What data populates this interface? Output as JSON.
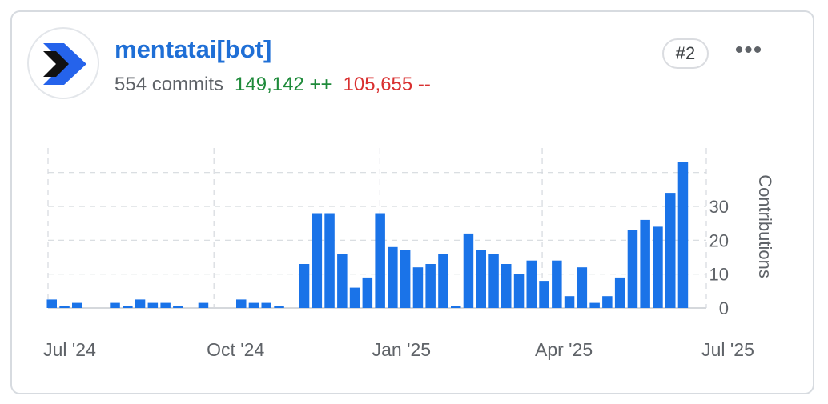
{
  "contributor": {
    "name": "mentatai[bot]",
    "commits": "554 commits",
    "additions": "149,142 ++",
    "deletions": "105,655 --",
    "rank": "#2",
    "more_label": "•••",
    "avatar_icon": "mentat-chevron-logo-icon"
  },
  "colors": {
    "accent": "#1f6fd6",
    "bar": "#1a73e8",
    "additions": "#1e8a3a",
    "deletions": "#d93030"
  },
  "chart_data": {
    "type": "bar",
    "ylabel": "Contributions",
    "xlabel": "",
    "y_ticks": [
      0,
      10,
      20,
      30
    ],
    "ylim": [
      0,
      43
    ],
    "x_tick_labels": [
      "Jul '24",
      "Oct '24",
      "Jan '25",
      "Apr '25",
      "Jul '25"
    ],
    "x_tick_dates": [
      "2024-07-01",
      "2024-10-01",
      "2025-01-01",
      "2025-04-01",
      "2025-07-01"
    ],
    "grid": true,
    "x": [
      "2024-06-30",
      "2024-07-07",
      "2024-07-14",
      "2024-07-21",
      "2024-07-28",
      "2024-08-04",
      "2024-08-11",
      "2024-08-18",
      "2024-08-25",
      "2024-09-01",
      "2024-09-08",
      "2024-09-15",
      "2024-09-22",
      "2024-09-29",
      "2024-10-06",
      "2024-10-13",
      "2024-10-20",
      "2024-10-27",
      "2024-11-03",
      "2024-11-10",
      "2024-11-17",
      "2024-11-24",
      "2024-12-01",
      "2024-12-08",
      "2024-12-15",
      "2024-12-22",
      "2024-12-29",
      "2025-01-05",
      "2025-01-12",
      "2025-01-19",
      "2025-01-26",
      "2025-02-02",
      "2025-02-09",
      "2025-02-16",
      "2025-02-23",
      "2025-03-02",
      "2025-03-09",
      "2025-03-16",
      "2025-03-23",
      "2025-03-30",
      "2025-04-06",
      "2025-04-13",
      "2025-04-20",
      "2025-04-27",
      "2025-05-04",
      "2025-05-11",
      "2025-05-18",
      "2025-05-25",
      "2025-06-01",
      "2025-06-08",
      "2025-06-15",
      "2025-06-22"
    ],
    "values": [
      2.5,
      0.5,
      1.5,
      0,
      0,
      1.5,
      0.5,
      2.5,
      1.5,
      1.5,
      0.5,
      0,
      1.5,
      0,
      0,
      2.5,
      1.5,
      1.5,
      0.5,
      0,
      13,
      28,
      28,
      16,
      6,
      9,
      28,
      18,
      17,
      12,
      13,
      16,
      0.5,
      22,
      17,
      16,
      13,
      10,
      14,
      8,
      14,
      3.5,
      12,
      1.5,
      3.5,
      9,
      23,
      26,
      24,
      34,
      43,
      0
    ]
  }
}
